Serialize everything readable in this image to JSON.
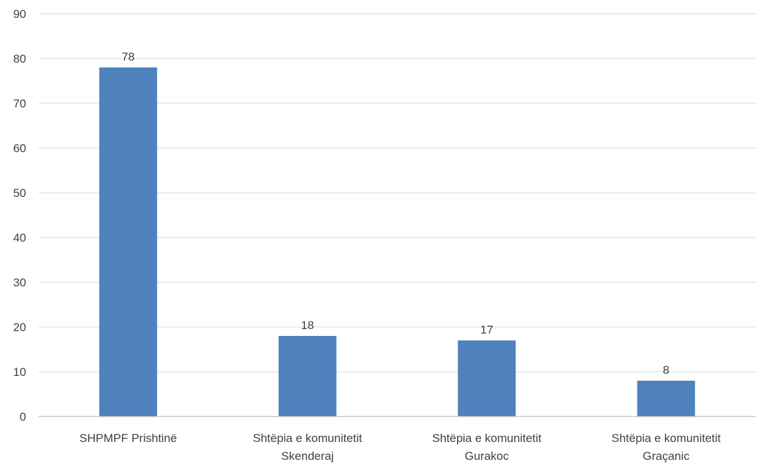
{
  "chart_data": {
    "type": "bar",
    "categories": [
      [
        "SHPMPF Prishtinë"
      ],
      [
        "Shtëpia e komunitetit",
        "Skenderaj"
      ],
      [
        "Shtëpia e komunitetit",
        "Gurakoc"
      ],
      [
        "Shtëpia e komunitetit",
        "Graçanic"
      ]
    ],
    "values": [
      78,
      18,
      17,
      8
    ],
    "title": "",
    "xlabel": "",
    "ylabel": "",
    "ylim": [
      0,
      90
    ],
    "yticks": [
      0,
      10,
      20,
      30,
      40,
      50,
      60,
      70,
      80,
      90
    ],
    "grid": true,
    "legend": "none",
    "bar_color": "#4f81bd"
  }
}
